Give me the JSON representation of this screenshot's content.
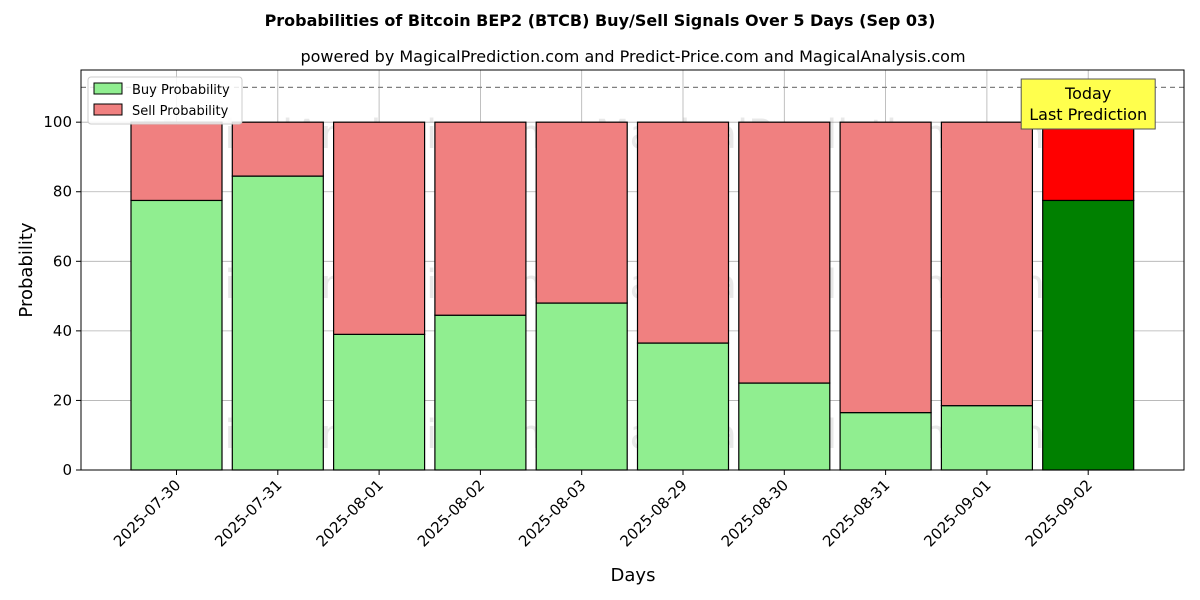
{
  "chart_data": {
    "type": "bar",
    "stacked": true,
    "title": "Probabilities of Bitcoin BEP2 (BTCB) Buy/Sell Signals Over 5 Days (Sep 03)",
    "subtitle": "powered by MagicalPrediction.com and Predict-Price.com and MagicalAnalysis.com",
    "xlabel": "Days",
    "ylabel": "Probability",
    "ylim": [
      0,
      115
    ],
    "yticks": [
      0,
      20,
      40,
      60,
      80,
      100
    ],
    "grid": true,
    "reference_line": 110,
    "legend_position": "top-left",
    "categories": [
      "2025-07-30",
      "2025-07-31",
      "2025-08-01",
      "2025-08-02",
      "2025-08-03",
      "2025-08-29",
      "2025-08-30",
      "2025-08-31",
      "2025-09-01",
      "2025-09-02"
    ],
    "series": [
      {
        "name": "Buy Probability",
        "values": [
          77.5,
          84.5,
          39,
          44.5,
          48,
          36.5,
          25,
          16.5,
          18.5,
          77.5
        ],
        "color": "#90ee90",
        "highlight_color": "#008000"
      },
      {
        "name": "Sell Probability",
        "values": [
          22.5,
          15.5,
          61,
          55.5,
          52,
          63.5,
          75,
          83.5,
          81.5,
          22.5
        ],
        "color": "#f08080",
        "highlight_color": "#ff0000"
      }
    ],
    "highlight_index": 9,
    "annotation": {
      "line1": "Today",
      "line2": "Last Prediction",
      "background": "#ffff4d"
    },
    "watermarks": [
      "MagicalAnalysis.com",
      "MagicalPrediction.com"
    ]
  }
}
